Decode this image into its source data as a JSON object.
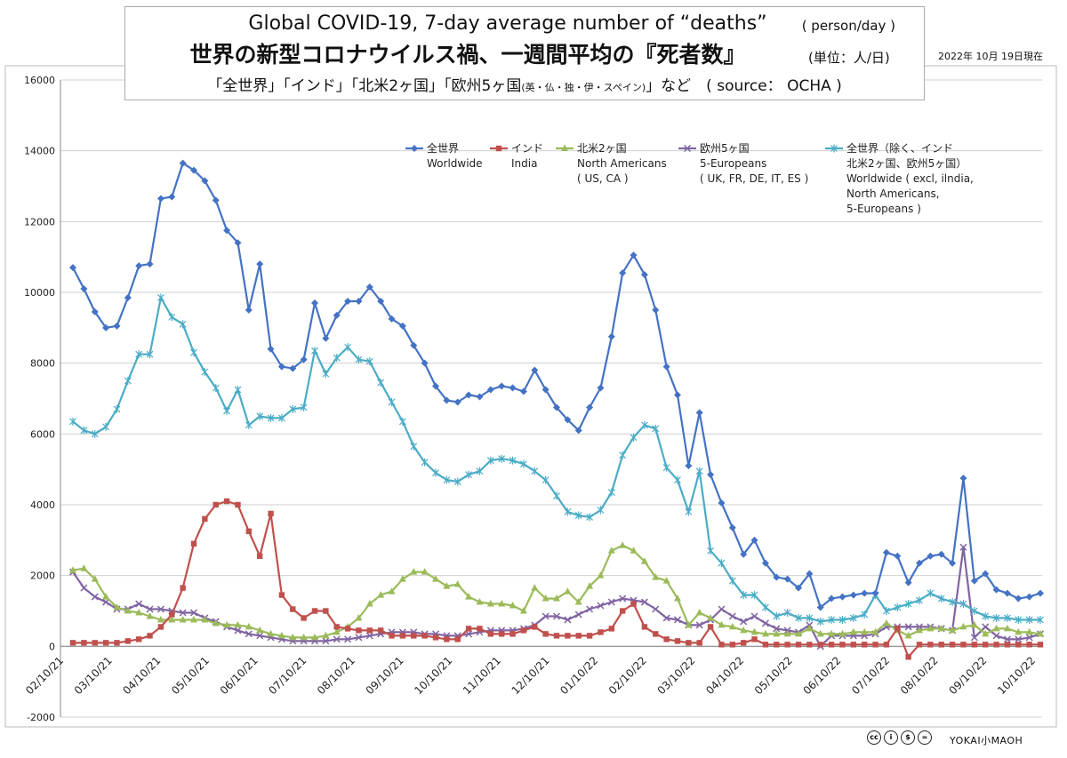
{
  "title": {
    "line1": "Global COVID-19, 7-day average number of “deaths”",
    "line1_unit": "( person/day )",
    "line2": "世界の新型コロナウイルス禍、一週間平均の『死者数』",
    "line2_unit": "(単位：人/日)",
    "line3_a": "「全世界」「インド」「北米2ヶ国」「欧州5ヶ国",
    "line3_small": "(英・仏・独・伊・スペイン)",
    "line3_b": "」など　( source： OCHA )"
  },
  "date_note": "2022年 10月 19日現在",
  "brand": "YOKAI小MAOH",
  "colors": {
    "worldwide": "#4472C4",
    "india": "#C0504D",
    "north_america": "#9BBB59",
    "europe": "#8064A2",
    "rest": "#4BACC6"
  },
  "chart_data": {
    "type": "line",
    "ylim": [
      -2000,
      16000
    ],
    "yticks": [
      "16000",
      "14000",
      "12000",
      "10000",
      "8000",
      "6000",
      "4000",
      "2000",
      "0",
      "-2000"
    ],
    "x_tick_labels": [
      "02/10/21",
      "03/10/21",
      "04/10/21",
      "05/10/21",
      "06/10/21",
      "07/10/21",
      "08/10/21",
      "09/10/21",
      "10/10/21",
      "11/10/21",
      "12/10/21",
      "01/10/22",
      "02/10/22",
      "03/10/22",
      "04/10/22",
      "05/10/22",
      "06/10/22",
      "07/10/22",
      "08/10/22",
      "09/10/22",
      "10/10/22"
    ],
    "grid": true,
    "legend_position": "top-right",
    "series": [
      {
        "key": "worldwide",
        "name_jp": "全世界",
        "name_en": [
          "Worldwide"
        ],
        "marker": "diamond",
        "values": [
          10700,
          10100,
          9450,
          9000,
          9050,
          9850,
          10750,
          10800,
          12650,
          12700,
          13650,
          13450,
          13150,
          12600,
          11750,
          11400,
          9500,
          10800,
          8400,
          7900,
          7850,
          8100,
          9700,
          8700,
          9350,
          9750,
          9750,
          10150,
          9750,
          9250,
          9050,
          8500,
          8000,
          7350,
          6950,
          6900,
          7100,
          7050,
          7250,
          7350,
          7300,
          7200,
          7800,
          7250,
          6750,
          6400,
          6100,
          6750,
          7300,
          8750,
          10550,
          11050,
          10500,
          9500,
          7900,
          7100,
          5100,
          6600,
          4850,
          4050,
          3350,
          2600,
          3000,
          2350,
          1950,
          1900,
          1650,
          2050,
          1100,
          1350,
          1400,
          1450,
          1500,
          1500,
          2650,
          2550,
          1800,
          2350,
          2550,
          2600,
          2350,
          4750,
          1850,
          2050,
          1600,
          1500,
          1350,
          1400,
          1500
        ]
      },
      {
        "key": "india",
        "name_jp": "インド",
        "name_en": [
          "India"
        ],
        "marker": "square",
        "values": [
          100,
          100,
          100,
          100,
          100,
          150,
          200,
          300,
          550,
          900,
          1650,
          2900,
          3600,
          4000,
          4100,
          4000,
          3250,
          2550,
          3750,
          1450,
          1050,
          800,
          1000,
          1000,
          550,
          500,
          450,
          450,
          450,
          300,
          300,
          300,
          300,
          250,
          200,
          200,
          500,
          500,
          350,
          350,
          350,
          450,
          550,
          350,
          300,
          300,
          300,
          300,
          400,
          500,
          1000,
          1200,
          550,
          350,
          200,
          150,
          100,
          100,
          550,
          50,
          50,
          100,
          200,
          50,
          50,
          50,
          50,
          50,
          50,
          50,
          50,
          50,
          50,
          50,
          50,
          500,
          -300,
          50,
          50,
          50,
          50,
          50,
          50,
          50,
          50,
          50,
          50,
          50,
          50
        ]
      },
      {
        "key": "north_america",
        "name_jp": "北米2ヶ国",
        "name_en": [
          "North Americans",
          "( US, CA )"
        ],
        "marker": "triangle",
        "values": [
          2150,
          2200,
          1900,
          1400,
          1100,
          1000,
          950,
          850,
          750,
          750,
          750,
          750,
          750,
          650,
          600,
          600,
          550,
          450,
          350,
          300,
          250,
          250,
          250,
          300,
          400,
          550,
          800,
          1200,
          1450,
          1550,
          1900,
          2100,
          2100,
          1900,
          1700,
          1750,
          1400,
          1250,
          1200,
          1200,
          1150,
          1000,
          1650,
          1350,
          1350,
          1550,
          1250,
          1700,
          2000,
          2700,
          2850,
          2700,
          2400,
          1950,
          1850,
          1350,
          600,
          950,
          800,
          600,
          550,
          450,
          400,
          350,
          350,
          350,
          350,
          500,
          350,
          350,
          350,
          400,
          400,
          400,
          650,
          450,
          300,
          450,
          500,
          500,
          450,
          550,
          600,
          350,
          500,
          500,
          400,
          400,
          350
        ]
      },
      {
        "key": "europe",
        "name_jp": "欧州5ヶ国",
        "name_en": [
          "5-Europeans",
          "( UK, FR, DE, IT, ES )"
        ],
        "marker": "x",
        "values": [
          2100,
          1650,
          1400,
          1250,
          1050,
          1050,
          1200,
          1050,
          1050,
          1000,
          950,
          950,
          800,
          700,
          550,
          450,
          350,
          300,
          250,
          200,
          150,
          150,
          150,
          150,
          200,
          200,
          250,
          300,
          350,
          400,
          400,
          400,
          350,
          350,
          300,
          300,
          350,
          400,
          450,
          450,
          450,
          500,
          600,
          850,
          850,
          750,
          900,
          1050,
          1150,
          1250,
          1350,
          1300,
          1250,
          1050,
          800,
          750,
          600,
          600,
          750,
          1050,
          850,
          700,
          850,
          650,
          500,
          450,
          400,
          600,
          0,
          300,
          300,
          300,
          300,
          350,
          550,
          550,
          550,
          550,
          550,
          500,
          450,
          2800,
          250,
          550,
          300,
          200,
          200,
          250,
          350
        ]
      },
      {
        "key": "rest",
        "name_jp": "全世界（除く、インド",
        "name_jp2": "北米2ヶ国、欧州5ヶ国）",
        "name_en": [
          "Worldwide ( excl, ilndia,",
          "North Americans,",
          "5-Europeans )"
        ],
        "marker": "asterisk",
        "values": [
          6350,
          6100,
          6000,
          6200,
          6700,
          7500,
          8250,
          8250,
          9850,
          9300,
          9100,
          8300,
          7750,
          7300,
          6650,
          7250,
          6250,
          6500,
          6450,
          6450,
          6700,
          6750,
          8350,
          7700,
          8150,
          8450,
          8100,
          8050,
          7450,
          6900,
          6350,
          5650,
          5200,
          4900,
          4700,
          4650,
          4850,
          4950,
          5250,
          5300,
          5250,
          5150,
          4950,
          4700,
          4250,
          3800,
          3700,
          3650,
          3850,
          4350,
          5400,
          5900,
          6250,
          6150,
          5050,
          4700,
          3800,
          4950,
          2700,
          2350,
          1850,
          1450,
          1450,
          1100,
          850,
          950,
          800,
          800,
          700,
          750,
          750,
          800,
          900,
          1450,
          1000,
          1100,
          1200,
          1300,
          1500,
          1350,
          1250,
          1200,
          1000,
          850,
          800,
          800,
          750,
          750,
          750
        ]
      }
    ]
  }
}
